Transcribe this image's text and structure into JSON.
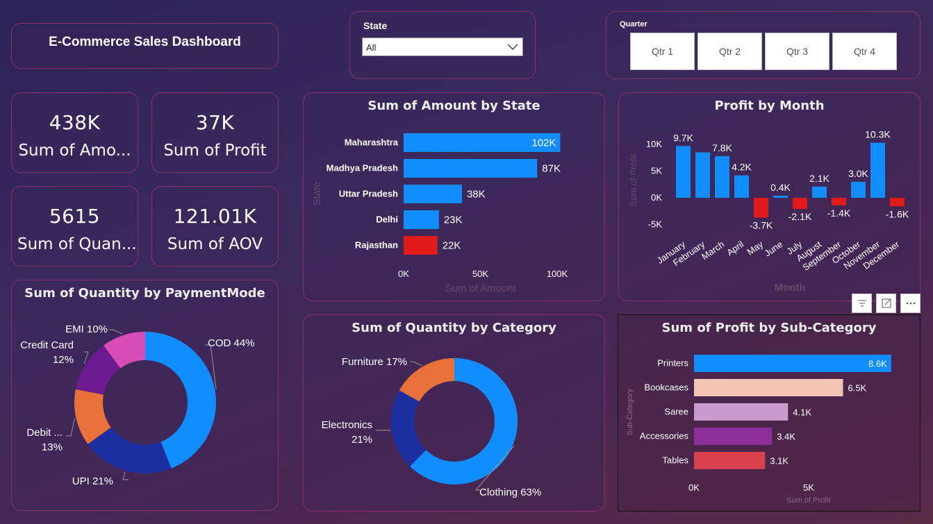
{
  "dashboard": {
    "title": "E-Commerce Sales Dashboard"
  },
  "slicers": {
    "state": {
      "label": "State",
      "selected": "All"
    },
    "quarter": {
      "label": "Quarter",
      "options": [
        "Qtr 1",
        "Qtr 2",
        "Qtr 3",
        "Qtr 4"
      ]
    }
  },
  "kpis": [
    {
      "value": "438K",
      "label": "Sum of Amo..."
    },
    {
      "value": "37K",
      "label": "Sum of Profit"
    },
    {
      "value": "5615",
      "label": "Sum of Quan..."
    },
    {
      "value": "121.01K",
      "label": "Sum of AOV"
    }
  ],
  "visual_header_icons": [
    "filter-icon",
    "focus-mode-icon",
    "more-options-icon"
  ],
  "colors": {
    "blue": "#118dff",
    "red": "#e11a1a",
    "navy": "#1b2fa0",
    "orange": "#e8713a",
    "purple": "#6b1a8f",
    "pink": "#d84cb8"
  },
  "chart_data": [
    {
      "id": "amount_by_state",
      "type": "bar",
      "orientation": "horizontal",
      "title": "Sum of Amount by State",
      "xlabel": "Sum of Amount",
      "ylabel": "State",
      "categories": [
        "Maharashtra",
        "Madhya Pradesh",
        "Uttar Pradesh",
        "Delhi",
        "Rajasthan"
      ],
      "values": [
        102000,
        87000,
        38000,
        23000,
        22000
      ],
      "data_labels": [
        "102K",
        "87K",
        "38K",
        "23K",
        "22K"
      ],
      "bar_colors": [
        "#118dff",
        "#118dff",
        "#118dff",
        "#118dff",
        "#e11a1a"
      ],
      "xticks": [
        "0K",
        "50K",
        "100K"
      ],
      "xlim": [
        0,
        100000
      ]
    },
    {
      "id": "profit_by_month",
      "type": "bar",
      "title": "Profit by Month",
      "xlabel": "Month",
      "ylabel": "Sum of Profit",
      "categories": [
        "January",
        "February",
        "March",
        "April",
        "May",
        "June",
        "July",
        "August",
        "September",
        "October",
        "November",
        "December"
      ],
      "values": [
        9700,
        8500,
        7800,
        4200,
        -3700,
        400,
        -2100,
        2100,
        -1400,
        3000,
        10300,
        -1600
      ],
      "data_labels": [
        "9.7K",
        "",
        "7.8K",
        "4.2K",
        "-3.7K",
        "0.4K",
        "-2.1K",
        "2.1K",
        "-1.4K",
        "3.0K",
        "10.3K",
        "-1.6K"
      ],
      "yticks": [
        "10K",
        "5K",
        "0K",
        "-5K"
      ],
      "ylim": [
        -5000,
        10000
      ]
    },
    {
      "id": "quantity_by_paymentmode",
      "type": "pie",
      "donut": true,
      "title": "Sum of Quantity by PaymentMode",
      "slices": [
        {
          "label": "COD",
          "value": 44,
          "display": "COD 44%",
          "color": "#118dff"
        },
        {
          "label": "UPI",
          "value": 21,
          "display": "UPI 21%",
          "color": "#1b2fa0"
        },
        {
          "label": "Debit ...",
          "value": 13,
          "display": "Debit ...",
          "display2": "13%",
          "color": "#e8713a"
        },
        {
          "label": "Credit Card",
          "value": 12,
          "display": "Credit Card",
          "display2": "12%",
          "color": "#6b1a8f"
        },
        {
          "label": "EMI",
          "value": 10,
          "display": "EMI 10%",
          "color": "#d84cb8"
        }
      ]
    },
    {
      "id": "quantity_by_category",
      "type": "pie",
      "donut": true,
      "title": "Sum of Quantity by Category",
      "slices": [
        {
          "label": "Clothing",
          "value": 63,
          "display": "Clothing 63%",
          "color": "#118dff"
        },
        {
          "label": "Electronics",
          "value": 21,
          "display": "Electronics",
          "display2": "21%",
          "color": "#1b2fa0"
        },
        {
          "label": "Furniture",
          "value": 17,
          "display": "Furniture 17%",
          "color": "#e8713a"
        }
      ]
    },
    {
      "id": "profit_by_subcategory",
      "type": "bar",
      "orientation": "horizontal",
      "title": "Sum of Profit by Sub-Category",
      "xlabel": "Sum of Profit",
      "ylabel": "Sub-Category",
      "categories": [
        "Printers",
        "Bookcases",
        "Saree",
        "Accessories",
        "Tables"
      ],
      "values": [
        8600,
        6500,
        4100,
        3400,
        3100
      ],
      "data_labels": [
        "8.6K",
        "6.5K",
        "4.1K",
        "3.4K",
        "3.1K"
      ],
      "bar_colors": [
        "#118dff",
        "#f2c4b4",
        "#c99bcc",
        "#8c2f98",
        "#d9404e"
      ],
      "xticks": [
        "0K",
        "5K"
      ],
      "xlim": [
        0,
        10000
      ]
    }
  ]
}
